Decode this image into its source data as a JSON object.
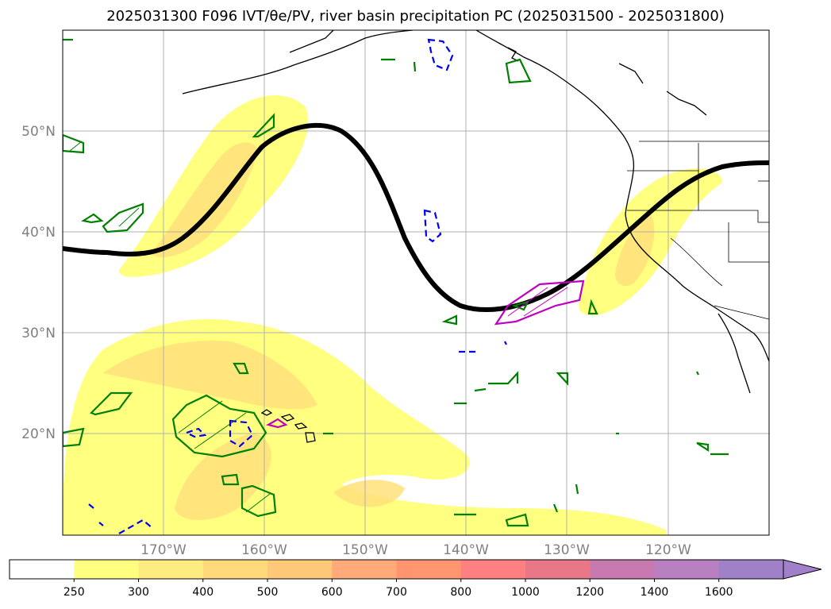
{
  "title": "2025031300 F096 IVT/θe/PV, river basin precipitation PC (2025031500 - 2025031800)",
  "map": {
    "lon_labels": [
      "170°W",
      "160°W",
      "150°W",
      "140°W",
      "130°W",
      "120°W"
    ],
    "lat_labels": [
      "50°N",
      "40°N",
      "30°N",
      "20°N"
    ],
    "gridlines": true,
    "projection_extent": {
      "lon": [
        -180,
        -110
      ],
      "lat": [
        10,
        60
      ]
    }
  },
  "colorbar": {
    "ticks": [
      "250",
      "300",
      "400",
      "500",
      "600",
      "700",
      "800",
      "1000",
      "1200",
      "1400",
      "1600"
    ],
    "colors": [
      "#ffffff",
      "#ffff80",
      "#ffec80",
      "#ffd97a",
      "#ffc878",
      "#ffaa78",
      "#ff9670",
      "#ff8080",
      "#e87888",
      "#c87ab0",
      "#b880c0",
      "#a080c8"
    ],
    "extend": "max"
  },
  "legend_colors": {
    "ivt_fill_low": "#ffff80",
    "ivt_fill_mid": "#ffe07a",
    "theta_e_contour": "#000000",
    "pv_positive": "#008000",
    "pv_negative": "#0000ff",
    "precip_pc": "#c000c0"
  }
}
